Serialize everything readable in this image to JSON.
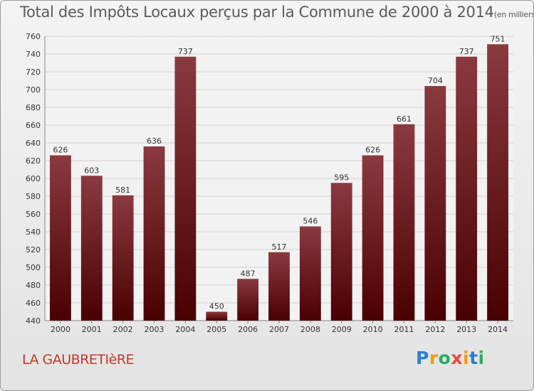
{
  "header": {
    "title": "Total des Impôts Locaux perçus par la Commune de 2000 à 2014",
    "unit": "(en milliers d'€)"
  },
  "footer": {
    "commune": "LA GAUBRETIèRE",
    "logo": {
      "letters": [
        "P",
        "r",
        "o",
        "x",
        "i",
        "t",
        "i"
      ],
      "colors": [
        "#2e7bd6",
        "#f39c12",
        "#27ae60",
        "#e74c3c",
        "#f39c12",
        "#2e7bd6",
        "#27ae60"
      ]
    }
  },
  "colors": {
    "bar_top": "#8a3a3f",
    "bar_bottom": "#4a0000",
    "grid": "#d0d0d0"
  },
  "chart_data": {
    "type": "bar",
    "title": "Total des Impôts Locaux perçus par la Commune de 2000 à 2014",
    "xlabel": "",
    "ylabel": "",
    "categories": [
      "2000",
      "2001",
      "2002",
      "2003",
      "2004",
      "2005",
      "2006",
      "2007",
      "2008",
      "2009",
      "2010",
      "2011",
      "2012",
      "2013",
      "2014"
    ],
    "values": [
      626,
      603,
      581,
      636,
      737,
      450,
      487,
      517,
      546,
      595,
      626,
      661,
      704,
      737,
      751
    ],
    "ylim": [
      440,
      760
    ],
    "yticks": [
      440,
      460,
      480,
      500,
      520,
      540,
      560,
      580,
      600,
      620,
      640,
      660,
      680,
      700,
      720,
      740,
      760
    ],
    "grid": true
  }
}
